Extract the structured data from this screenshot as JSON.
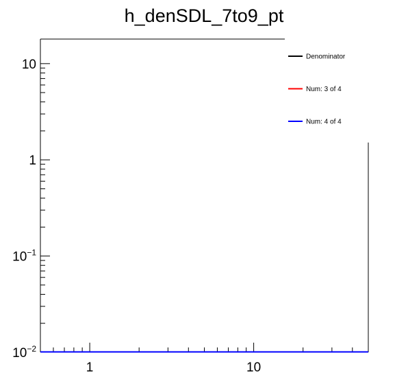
{
  "chart_data": {
    "type": "line",
    "title": "h_denSDL_7to9_pt",
    "xlabel": "",
    "ylabel": "",
    "x_scale": "log",
    "y_scale": "log",
    "xlim": [
      0.5,
      50
    ],
    "ylim": [
      0.01,
      18
    ],
    "grid": false,
    "legend_position": "top-right",
    "x_tick_labels": [
      {
        "value": 1,
        "label": "1"
      },
      {
        "value": 10,
        "label": "10"
      }
    ],
    "y_tick_labels": [
      {
        "value": 0.01,
        "base": "10",
        "exp": "−2"
      },
      {
        "value": 0.1,
        "base": "10",
        "exp": "−1"
      },
      {
        "value": 1,
        "base": "1",
        "exp": ""
      },
      {
        "value": 10,
        "base": "10",
        "exp": ""
      }
    ],
    "series": [
      {
        "name": "Denominator",
        "color": "#000000",
        "x": [
          0.5,
          50
        ],
        "y": [
          0.01,
          0.01
        ]
      },
      {
        "name": "Num: 3 of 4",
        "color": "#ff0000",
        "x": [
          0.5,
          50
        ],
        "y": [
          0.01,
          0.01
        ]
      },
      {
        "name": "Num: 4 of 4",
        "color": "#0000ff",
        "x": [
          0.5,
          50
        ],
        "y": [
          0.01,
          0.01
        ]
      }
    ]
  }
}
